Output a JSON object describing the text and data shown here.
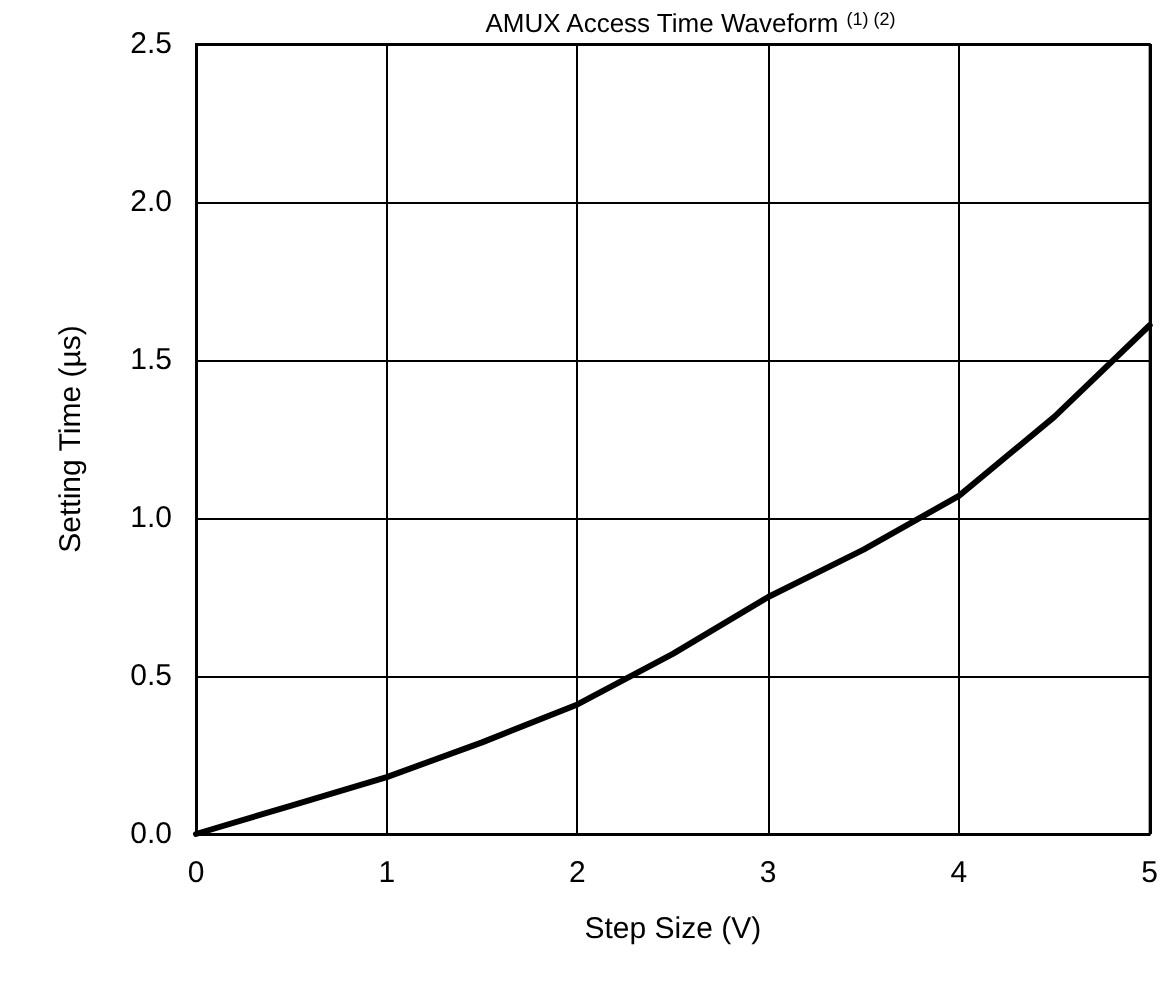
{
  "chart_data": {
    "type": "line",
    "title": "AMUX Access Time Waveform $^{(1) (2)}$",
    "xlabel": "Step Size (V)",
    "ylabel": "Setting Time (µs)",
    "x": [
      0,
      0.5,
      1,
      1.5,
      2,
      2.5,
      3,
      3.5,
      4,
      4.5,
      5
    ],
    "series": [
      {
        "color": "#000000",
        "values": [
          0,
          0.09,
          0.18,
          0.29,
          0.41,
          0.57,
          0.75,
          0.9,
          1.07,
          1.32,
          1.61
        ]
      }
    ],
    "xlim": [
      0,
      5
    ],
    "xticks": [
      0,
      1,
      2,
      3,
      4,
      5
    ],
    "ylim": [
      0,
      2.5
    ],
    "yticks": [
      {
        "value": 0,
        "label": "0.0"
      },
      {
        "value": 0.5,
        "label": "0.5"
      },
      {
        "value": 1,
        "label": "1.0"
      },
      {
        "value": 1.5,
        "label": "1.5"
      },
      {
        "value": 2,
        "label": "2.0"
      },
      {
        "value": 2.5,
        "label": "2.5"
      }
    ],
    "grid": true,
    "marker": "none",
    "line_style": "solid"
  }
}
